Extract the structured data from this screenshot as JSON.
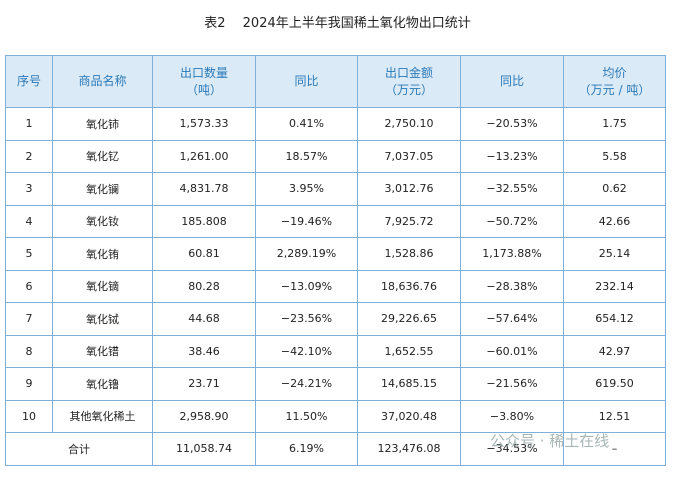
{
  "title": "表2　 2024年上半年我国稀土氧化物出口统计",
  "table": {
    "headers": [
      [
        "序号"
      ],
      [
        "商品名称"
      ],
      [
        "出口数量",
        "（吨）"
      ],
      [
        "同比"
      ],
      [
        "出口金额",
        "（万元）"
      ],
      [
        "同比"
      ],
      [
        "均价",
        "（万元 / 吨）"
      ]
    ],
    "rows": [
      [
        "1",
        "氧化铈",
        "1,573.33",
        "0.41%",
        "2,750.10",
        "−20.53%",
        "1.75"
      ],
      [
        "2",
        "氧化钇",
        "1,261.00",
        "18.57%",
        "7,037.05",
        "−13.23%",
        "5.58"
      ],
      [
        "3",
        "氧化镧",
        "4,831.78",
        "3.95%",
        "3,012.76",
        "−32.55%",
        "0.62"
      ],
      [
        "4",
        "氧化钕",
        "185.808",
        "−19.46%",
        "7,925.72",
        "−50.72%",
        "42.66"
      ],
      [
        "5",
        "氧化铕",
        "60.81",
        "2,289.19%",
        "1,528.86",
        "1,173.88%",
        "25.14"
      ],
      [
        "6",
        "氧化镝",
        "80.28",
        "−13.09%",
        "18,636.76",
        "−28.38%",
        "232.14"
      ],
      [
        "7",
        "氧化铽",
        "44.68",
        "−23.56%",
        "29,226.65",
        "−57.64%",
        "654.12"
      ],
      [
        "8",
        "氧化镨",
        "38.46",
        "−42.10%",
        "1,652.55",
        "−60.01%",
        "42.97"
      ],
      [
        "9",
        "氧化镥",
        "23.71",
        "−24.21%",
        "14,685.15",
        "−21.56%",
        "619.50"
      ],
      [
        "10",
        "其他氧化稀土",
        "2,958.90",
        "11.50%",
        "37,020.48",
        "−3.80%",
        "12.51"
      ]
    ],
    "total": [
      "合计",
      "11,058.74",
      "6.19%",
      "123,476.08",
      "−34.53%",
      "–"
    ]
  },
  "watermark": "公众号 · 稀土在线"
}
